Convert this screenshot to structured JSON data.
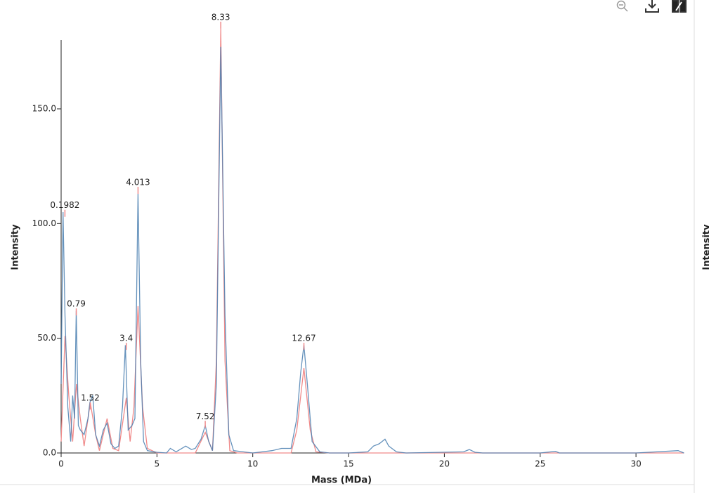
{
  "chart_data": {
    "type": "line",
    "x_label": "Mass (MDa)",
    "y_label": "Intensity",
    "xlim": [
      0,
      32.5
    ],
    "ylim": [
      0,
      180
    ],
    "xticks": [
      0,
      5,
      10,
      15,
      20,
      25,
      30
    ],
    "yticks": [
      {
        "value": 0,
        "label": "0.0"
      },
      {
        "value": 50,
        "label": "50.0"
      },
      {
        "value": 100,
        "label": "100.0"
      },
      {
        "value": 150,
        "label": "150.0"
      }
    ],
    "grid": false,
    "series": [
      {
        "color": "#f08a8a",
        "x": [
          0,
          0.2,
          0.4,
          0.6,
          0.8,
          1.0,
          1.2,
          1.52,
          1.8,
          2.0,
          2.4,
          2.7,
          3.0,
          3.4,
          3.6,
          3.8,
          4.013,
          4.25,
          4.5,
          5,
          7,
          7.52,
          7.9,
          8.1,
          8.33,
          8.55,
          8.8,
          9.2,
          12,
          12.3,
          12.67,
          13.0,
          13.3,
          14,
          32.5
        ],
        "values": [
          5,
          51,
          25,
          5,
          30,
          15,
          3,
          22,
          8,
          1,
          15,
          2,
          1,
          24,
          5,
          20,
          64,
          20,
          2,
          0,
          0,
          9,
          1,
          40,
          185,
          40,
          1,
          0,
          0,
          10,
          37,
          10,
          0.5,
          0,
          0
        ]
      },
      {
        "color": "#4a7fb0",
        "x": [
          0,
          0.1,
          0.2,
          0.35,
          0.5,
          0.6,
          0.7,
          0.79,
          0.9,
          1.0,
          1.2,
          1.4,
          1.5,
          1.65,
          1.8,
          2.0,
          2.2,
          2.4,
          2.6,
          2.8,
          3.0,
          3.2,
          3.35,
          3.5,
          3.7,
          3.85,
          4.013,
          4.15,
          4.3,
          4.5,
          5,
          5.5,
          5.7,
          6.0,
          6.5,
          6.8,
          7.0,
          7.3,
          7.52,
          7.7,
          7.9,
          8.1,
          8.33,
          8.55,
          8.75,
          9.0,
          9.5,
          10,
          11,
          11.5,
          12,
          12.3,
          12.5,
          12.67,
          12.85,
          13.1,
          13.5,
          14,
          15,
          16,
          16.3,
          16.6,
          16.9,
          17.1,
          17.5,
          18,
          21,
          21.3,
          21.6,
          22,
          25,
          25.8,
          26,
          30,
          32.2,
          32.5
        ],
        "values": [
          30,
          105,
          60,
          20,
          5,
          25,
          15,
          62,
          12,
          10,
          8,
          15,
          22,
          25,
          8,
          3,
          10,
          13,
          4,
          2,
          3,
          20,
          47,
          10,
          12,
          15,
          113,
          40,
          5,
          1,
          0.3,
          0,
          2,
          0.5,
          3,
          1.5,
          2,
          6,
          12,
          5,
          1,
          30,
          177,
          60,
          8,
          1,
          0.5,
          0,
          1,
          2,
          2,
          15,
          35,
          47,
          30,
          5,
          0.5,
          0,
          0,
          0.5,
          3,
          4,
          6,
          3,
          0.5,
          0,
          0.5,
          1.5,
          0.3,
          0,
          0,
          0.7,
          0,
          0,
          1,
          0
        ]
      }
    ],
    "peaks": {
      "x": [
        0.1982,
        0.79,
        1.52,
        3.4,
        4.013,
        7.52,
        8.33,
        12.67
      ],
      "y": [
        106,
        63,
        22,
        48,
        116,
        14,
        188,
        48
      ]
    },
    "adjacent_panel_label": "Intensity"
  }
}
